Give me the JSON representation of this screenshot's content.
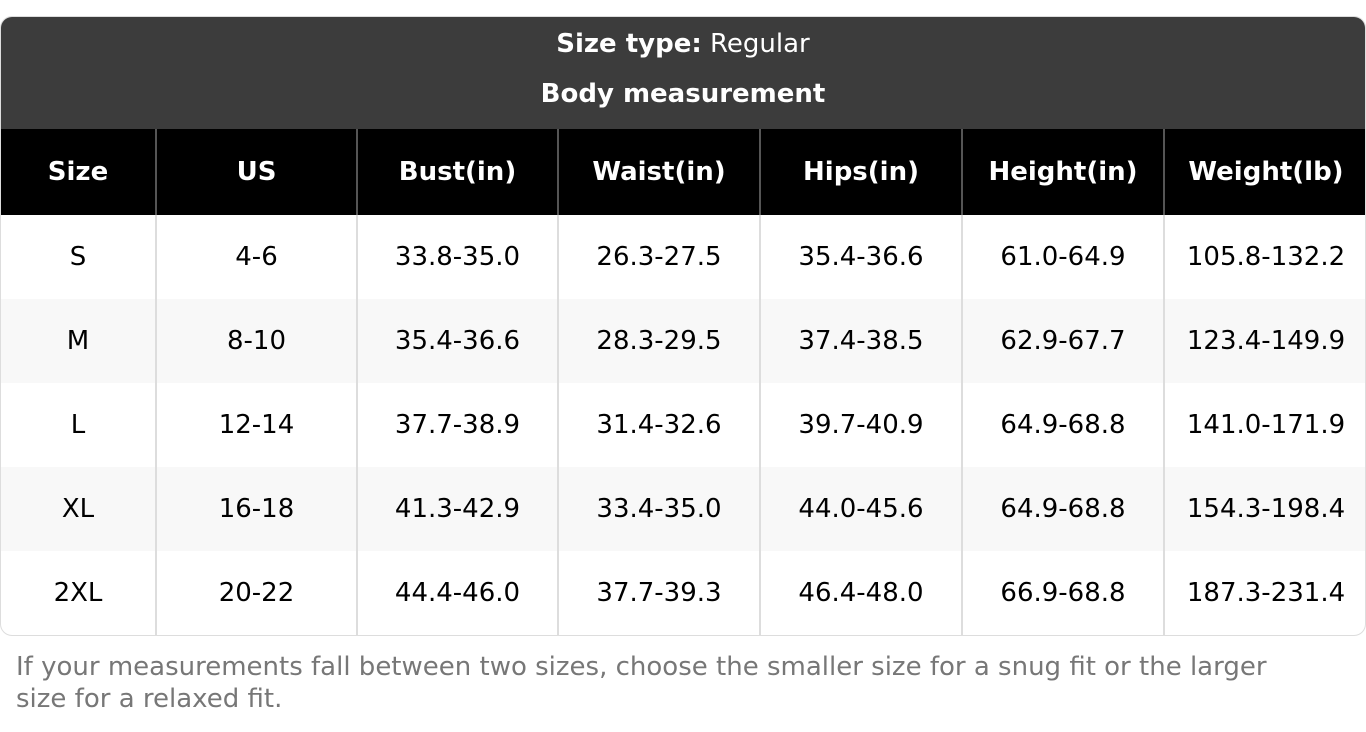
{
  "header": {
    "size_type_label": "Size type:",
    "size_type_value": "Regular",
    "subtitle": "Body measurement"
  },
  "table": {
    "columns": [
      "Size",
      "US",
      "Bust(in)",
      "Waist(in)",
      "Hips(in)",
      "Height(in)",
      "Weight(lb)"
    ],
    "rows": [
      [
        "S",
        "4-6",
        "33.8-35.0",
        "26.3-27.5",
        "35.4-36.6",
        "61.0-64.9",
        "105.8-132.2"
      ],
      [
        "M",
        "8-10",
        "35.4-36.6",
        "28.3-29.5",
        "37.4-38.5",
        "62.9-67.7",
        "123.4-149.9"
      ],
      [
        "L",
        "12-14",
        "37.7-38.9",
        "31.4-32.6",
        "39.7-40.9",
        "64.9-68.8",
        "141.0-171.9"
      ],
      [
        "XL",
        "16-18",
        "41.3-42.9",
        "33.4-35.0",
        "44.0-45.6",
        "64.9-68.8",
        "154.3-198.4"
      ],
      [
        "2XL",
        "20-22",
        "44.4-46.0",
        "37.7-39.3",
        "46.4-48.0",
        "66.9-68.8",
        "187.3-231.4"
      ]
    ]
  },
  "footnote": "If your measurements fall between two sizes, choose the smaller size for a snug fit or the larger size for a relaxed fit."
}
